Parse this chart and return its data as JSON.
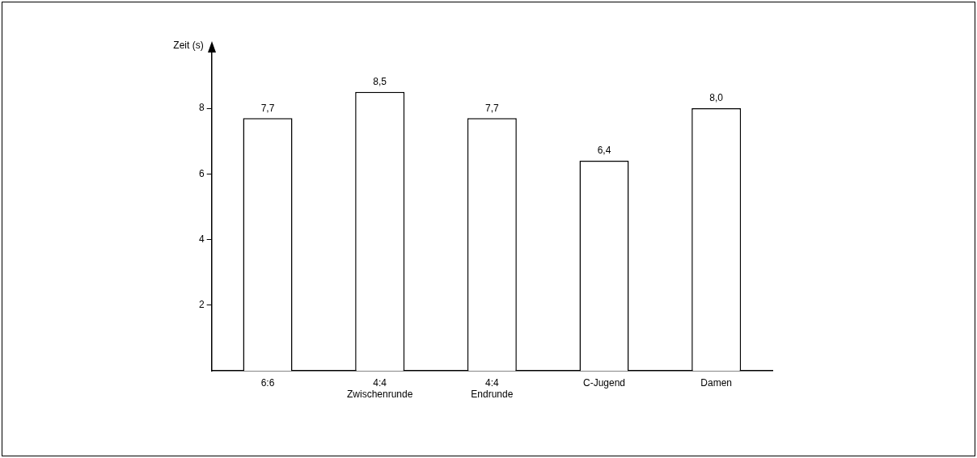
{
  "chart_data": {
    "type": "bar",
    "ylabel": "Zeit (s)",
    "categories": [
      "6:6",
      "4:4\nZwischenrunde",
      "4:4\nEndrunde",
      "C-Jugend",
      "Damen"
    ],
    "values": [
      7.7,
      8.5,
      7.7,
      6.4,
      8.0
    ],
    "value_labels": [
      "7,7",
      "8,5",
      "7,7",
      "6,4",
      "8,0"
    ],
    "color": "#ffffff",
    "ylim": [
      0,
      9.7
    ],
    "yticks": [
      2,
      4,
      6,
      8
    ],
    "grid": false,
    "legend": false
  }
}
